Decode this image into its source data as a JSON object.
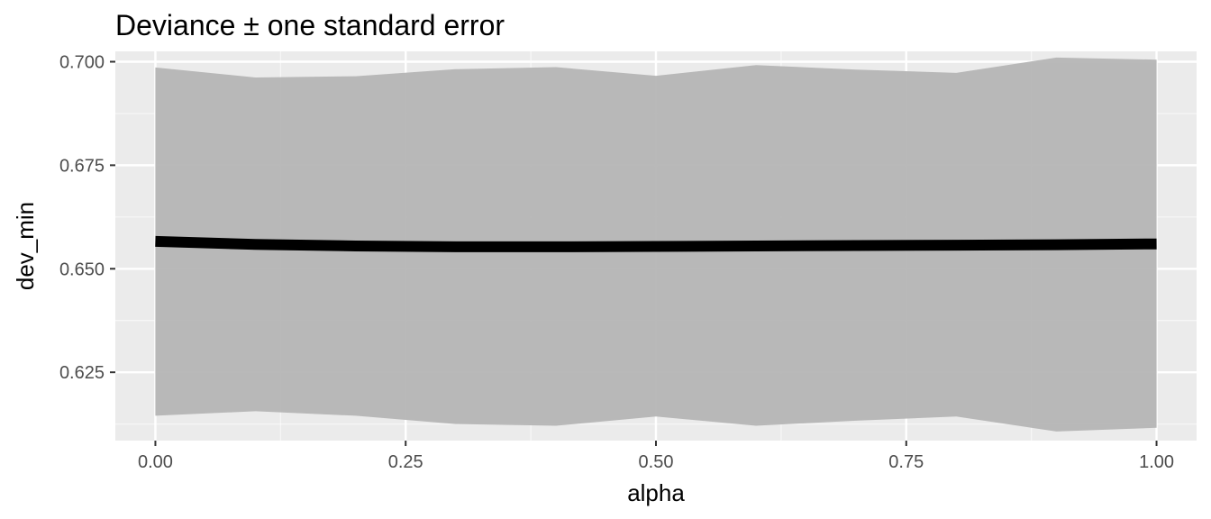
{
  "chart_data": {
    "type": "line",
    "title": "Deviance ± one standard error",
    "xlabel": "alpha",
    "ylabel": "dev_min",
    "xlim": [
      -0.04,
      1.04
    ],
    "ylim": [
      0.6085,
      0.7025
    ],
    "x_ticks": [
      {
        "value": 0.0,
        "label": "0.00"
      },
      {
        "value": 0.25,
        "label": "0.25"
      },
      {
        "value": 0.5,
        "label": "0.50"
      },
      {
        "value": 0.75,
        "label": "0.75"
      },
      {
        "value": 1.0,
        "label": "1.00"
      }
    ],
    "y_ticks": [
      {
        "value": 0.625,
        "label": "0.625"
      },
      {
        "value": 0.65,
        "label": "0.650"
      },
      {
        "value": 0.675,
        "label": "0.675"
      },
      {
        "value": 0.7,
        "label": "0.700"
      }
    ],
    "grid": true,
    "legend": "none",
    "series": [
      {
        "x": [
          0.0,
          0.1,
          0.2,
          0.3,
          0.4,
          0.5,
          0.6,
          0.7,
          0.8,
          0.9,
          1.0
        ],
        "y": [
          0.6566,
          0.6559,
          0.6555,
          0.6553,
          0.6553,
          0.6554,
          0.6555,
          0.6556,
          0.6557,
          0.6558,
          0.656
        ],
        "ymin": [
          0.6145,
          0.6156,
          0.6145,
          0.6125,
          0.6121,
          0.6143,
          0.6121,
          0.6133,
          0.6143,
          0.6107,
          0.6116
        ],
        "ymax": [
          0.6986,
          0.6962,
          0.6965,
          0.6982,
          0.6987,
          0.6966,
          0.6992,
          0.6981,
          0.6973,
          0.701,
          0.7005
        ]
      }
    ],
    "colors": {
      "panel_background": "#ebebeb",
      "grid_major": "#ffffff",
      "ribbon": "#b3b3b3",
      "line": "#000000"
    }
  }
}
